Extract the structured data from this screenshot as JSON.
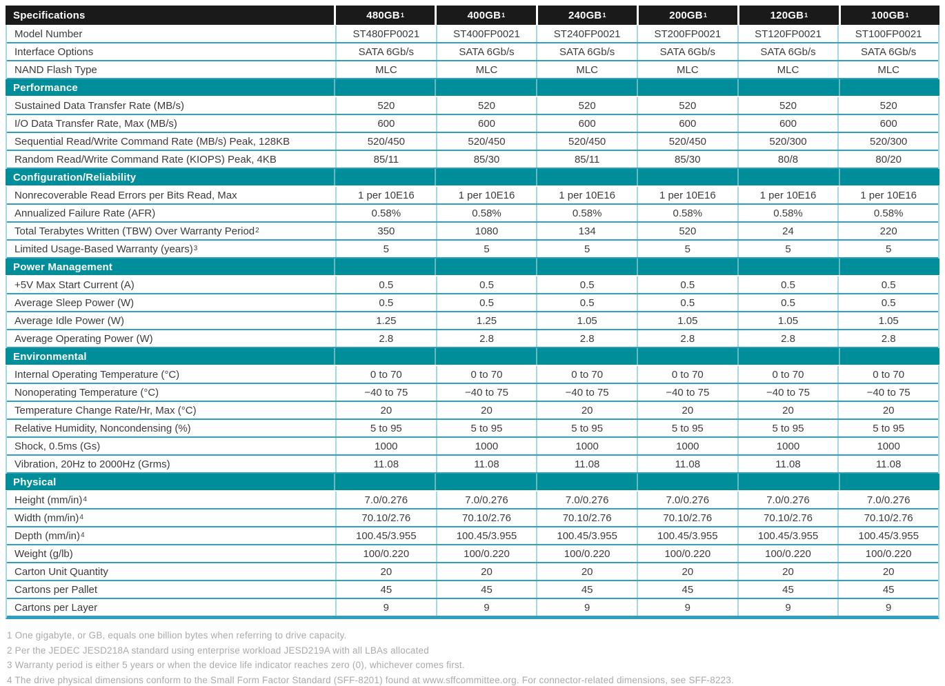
{
  "colors": {
    "accent_teal": "#008e9a",
    "header_black": "#1a1a1a",
    "border_strong": "#2e9fbe",
    "border_light": "#a5d8e6",
    "text": "#3b3b3b",
    "footnote_gray": "#a8aaac"
  },
  "table": {
    "header": {
      "label": "Specifications",
      "columns": [
        {
          "text": "480GB",
          "sup": "1"
        },
        {
          "text": "400GB",
          "sup": "1"
        },
        {
          "text": "240GB",
          "sup": "1"
        },
        {
          "text": "200GB",
          "sup": "1"
        },
        {
          "text": "120GB",
          "sup": "1"
        },
        {
          "text": "100GB",
          "sup": "1"
        }
      ]
    },
    "sections": [
      {
        "title": "",
        "rows": [
          {
            "label": "Model Number",
            "sup": "",
            "values": [
              "ST480FP0021",
              "ST400FP0021",
              "ST240FP0021",
              "ST200FP0021",
              "ST120FP0021",
              "ST100FP0021"
            ]
          },
          {
            "label": "Interface Options",
            "sup": "",
            "values": [
              "SATA 6Gb/s",
              "SATA 6Gb/s",
              "SATA 6Gb/s",
              "SATA 6Gb/s",
              "SATA 6Gb/s",
              "SATA 6Gb/s"
            ]
          },
          {
            "label": "NAND Flash Type",
            "sup": "",
            "values": [
              "MLC",
              "MLC",
              "MLC",
              "MLC",
              "MLC",
              "MLC"
            ]
          }
        ]
      },
      {
        "title": "Performance",
        "rows": [
          {
            "label": "Sustained Data Transfer Rate (MB/s)",
            "sup": "",
            "values": [
              "520",
              "520",
              "520",
              "520",
              "520",
              "520"
            ]
          },
          {
            "label": "I/O Data Transfer Rate, Max (MB/s)",
            "sup": "",
            "values": [
              "600",
              "600",
              "600",
              "600",
              "600",
              "600"
            ]
          },
          {
            "label": "Sequential Read/Write Command Rate (MB/s) Peak, 128KB",
            "sup": "",
            "values": [
              "520/450",
              "520/450",
              "520/450",
              "520/450",
              "520/300",
              "520/300"
            ]
          },
          {
            "label": "Random Read/Write Command Rate (KIOPS) Peak, 4KB",
            "sup": "",
            "values": [
              "85/11",
              "85/30",
              "85/11",
              "85/30",
              "80/8",
              "80/20"
            ]
          }
        ]
      },
      {
        "title": "Configuration/Reliability",
        "rows": [
          {
            "label": "Nonrecoverable Read Errors per Bits Read, Max",
            "sup": "",
            "values": [
              "1 per 10E16",
              "1 per 10E16",
              "1 per 10E16",
              "1 per 10E16",
              "1 per 10E16",
              "1 per 10E16"
            ]
          },
          {
            "label": "Annualized Failure Rate (AFR)",
            "sup": "",
            "values": [
              "0.58%",
              "0.58%",
              "0.58%",
              "0.58%",
              "0.58%",
              "0.58%"
            ]
          },
          {
            "label": "Total Terabytes Written (TBW) Over Warranty Period",
            "sup": "2",
            "values": [
              "350",
              "1080",
              "134",
              "520",
              "24",
              "220"
            ]
          },
          {
            "label": "Limited Usage-Based Warranty (years)",
            "sup": "3",
            "values": [
              "5",
              "5",
              "5",
              "5",
              "5",
              "5"
            ]
          }
        ]
      },
      {
        "title": "Power Management",
        "rows": [
          {
            "label": "+5V Max Start Current (A)",
            "sup": "",
            "values": [
              "0.5",
              "0.5",
              "0.5",
              "0.5",
              "0.5",
              "0.5"
            ]
          },
          {
            "label": "Average Sleep Power (W)",
            "sup": "",
            "values": [
              "0.5",
              "0.5",
              "0.5",
              "0.5",
              "0.5",
              "0.5"
            ]
          },
          {
            "label": "Average Idle Power (W)",
            "sup": "",
            "values": [
              "1.25",
              "1.25",
              "1.05",
              "1.05",
              "1.05",
              "1.05"
            ]
          },
          {
            "label": "Average Operating Power (W)",
            "sup": "",
            "values": [
              "2.8",
              "2.8",
              "2.8",
              "2.8",
              "2.8",
              "2.8"
            ]
          }
        ]
      },
      {
        "title": "Environmental",
        "rows": [
          {
            "label": "Internal Operating Temperature (°C)",
            "sup": "",
            "values": [
              "0 to 70",
              "0 to 70",
              "0 to 70",
              "0 to 70",
              "0 to 70",
              "0 to 70"
            ]
          },
          {
            "label": "Nonoperating Temperature (°C)",
            "sup": "",
            "values": [
              "−40 to 75",
              "−40 to 75",
              "−40 to 75",
              "−40 to 75",
              "−40 to 75",
              "−40 to 75"
            ]
          },
          {
            "label": "Temperature Change Rate/Hr, Max (°C)",
            "sup": "",
            "values": [
              "20",
              "20",
              "20",
              "20",
              "20",
              "20"
            ]
          },
          {
            "label": "Relative Humidity, Noncondensing (%)",
            "sup": "",
            "values": [
              "5 to 95",
              "5 to 95",
              "5 to 95",
              "5 to 95",
              "5 to 95",
              "5 to 95"
            ]
          },
          {
            "label": "Shock, 0.5ms (Gs)",
            "sup": "",
            "values": [
              "1000",
              "1000",
              "1000",
              "1000",
              "1000",
              "1000"
            ]
          },
          {
            "label": "Vibration, 20Hz to 2000Hz (Grms)",
            "sup": "",
            "values": [
              "11.08",
              "11.08",
              "11.08",
              "11.08",
              "11.08",
              "11.08"
            ]
          }
        ]
      },
      {
        "title": "Physical",
        "rows": [
          {
            "label": "Height (mm/in)",
            "sup": "4",
            "values": [
              "7.0/0.276",
              "7.0/0.276",
              "7.0/0.276",
              "7.0/0.276",
              "7.0/0.276",
              "7.0/0.276"
            ]
          },
          {
            "label": "Width (mm/in)",
            "sup": "4",
            "values": [
              "70.10/2.76",
              "70.10/2.76",
              "70.10/2.76",
              "70.10/2.76",
              "70.10/2.76",
              "70.10/2.76"
            ]
          },
          {
            "label": "Depth (mm/in)",
            "sup": "4",
            "values": [
              "100.45/3.955",
              "100.45/3.955",
              "100.45/3.955",
              "100.45/3.955",
              "100.45/3.955",
              "100.45/3.955"
            ]
          },
          {
            "label": "Weight (g/lb)",
            "sup": "",
            "values": [
              "100/0.220",
              "100/0.220",
              "100/0.220",
              "100/0.220",
              "100/0.220",
              "100/0.220"
            ]
          },
          {
            "label": "Carton Unit Quantity",
            "sup": "",
            "values": [
              "20",
              "20",
              "20",
              "20",
              "20",
              "20"
            ]
          },
          {
            "label": "Cartons per Pallet",
            "sup": "",
            "values": [
              "45",
              "45",
              "45",
              "45",
              "45",
              "45"
            ]
          },
          {
            "label": "Cartons per Layer",
            "sup": "",
            "values": [
              "9",
              "9",
              "9",
              "9",
              "9",
              "9"
            ]
          }
        ]
      }
    ]
  },
  "footnotes": [
    "1 One gigabyte, or GB, equals one billion bytes when referring to drive capacity.",
    "2 Per the JEDEC JESD218A standard using enterprise workload JESD219A with all LBAs allocated",
    "3 Warranty period is either 5 years or when the device life indicator reaches zero (0), whichever comes first.",
    "4 The drive physical dimensions conform to the Small Form Factor Standard (SFF-8201) found at www.sffcommittee.org. For connector-related dimensions, see SFF-8223."
  ]
}
